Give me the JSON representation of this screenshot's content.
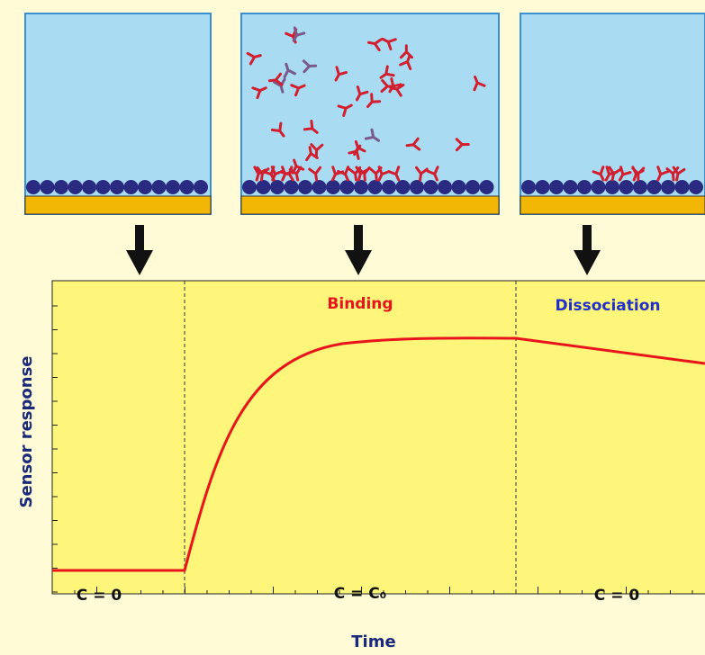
{
  "labels": {
    "binding": "Binding",
    "dissociation": "Dissociation"
  },
  "conditions": [
    "C = 0",
    "C = C₀",
    "C = 0"
  ],
  "axes": {
    "x": "Time",
    "y": "Sensor response"
  }
}
